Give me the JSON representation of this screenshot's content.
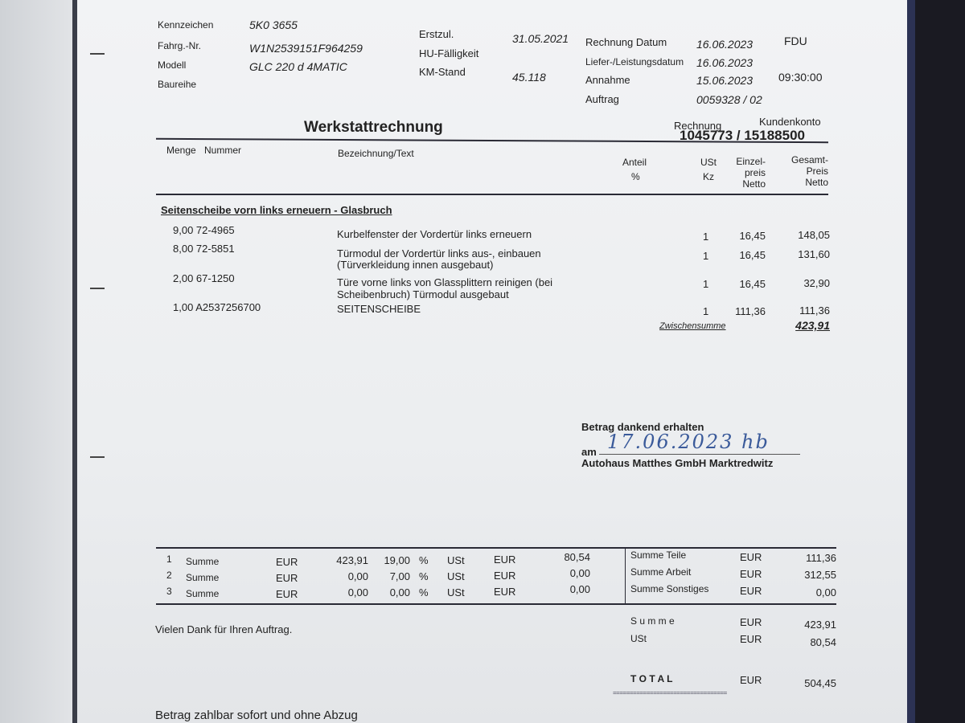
{
  "vehicle": {
    "kennzeichen_label": "Kennzeichen",
    "kennzeichen": "5K0 3655",
    "fahrg_label": "Fahrg.-Nr.",
    "fahrg": "W1N2539151F964259",
    "modell_label": "Modell",
    "modell": "GLC 220 d 4MATIC",
    "baureihe_label": "Baureihe",
    "erstzul_label": "Erstzul.",
    "erstzul": "31.05.2021",
    "hu_label": "HU-Fälligkeit",
    "km_label": "KM-Stand",
    "km": "45.118"
  },
  "invoice_meta": {
    "rechnung_datum_label": "Rechnung Datum",
    "rechnung_datum": "16.06.2023",
    "code": "FDU",
    "liefer_label": "Liefer-/Leistungsdatum",
    "liefer": "16.06.2023",
    "annahme_label": "Annahme",
    "annahme": "15.06.2023",
    "annahme_time": "09:30:00",
    "auftrag_label": "Auftrag",
    "auftrag": "0059328 / 02"
  },
  "title": "Werkstattrechnung",
  "rechnung_label": "Rechnung",
  "kundenkonto_label": "Kundenkonto",
  "numbers": "1045773 /  15188500",
  "columns": {
    "menge": "Menge",
    "nummer": "Nummer",
    "bezeichnung": "Bezeichnung/Text",
    "anteil": "Anteil",
    "anteil2": "%",
    "ust": "USt",
    "ust2": "Kz",
    "einzel": "Einzel-",
    "einzel2": "preis",
    "einzel3": "Netto",
    "gesamt": "Gesamt-",
    "gesamt2": "Preis",
    "gesamt3": "Netto"
  },
  "section_heading": "Seitenscheibe vorn links erneuern - Glasbruch",
  "items": [
    {
      "menge_nummer": "9,00 72-4965",
      "text": "Kurbelfenster der Vordertür links erneuern",
      "text2": "",
      "kz": "1",
      "einzel": "16,45",
      "gesamt": "148,05"
    },
    {
      "menge_nummer": "8,00 72-5851",
      "text": "Türmodul der Vordertür links aus-, einbauen",
      "text2": "(Türverkleidung innen ausgebaut)",
      "kz": "1",
      "einzel": "16,45",
      "gesamt": "131,60"
    },
    {
      "menge_nummer": "2,00 67-1250",
      "text": "Türe vorne links von Glassplittern reinigen (bei",
      "text2": "Scheibenbruch) Türmodul ausgebaut",
      "kz": "1",
      "einzel": "16,45",
      "gesamt": "32,90"
    },
    {
      "menge_nummer": "1,00 A2537256700",
      "text": "SEITENSCHEIBE",
      "text2": "",
      "kz": "1",
      "einzel": "111,36",
      "gesamt": "111,36"
    }
  ],
  "zwischensumme_label": "Zwischensumme",
  "zwischensumme": "423,91",
  "receipt": {
    "label": "Betrag dankend erhalten",
    "am": "am",
    "signature": "17.06.2023 hb",
    "company": "Autohaus Matthes GmbH Marktredwitz"
  },
  "tax_rows": [
    {
      "n": "1",
      "label": "Summe",
      "cur": "EUR",
      "base": "423,91",
      "rate": "19,00",
      "pct": "%",
      "ust": "USt",
      "cur2": "EUR",
      "amount": "80,54"
    },
    {
      "n": "2",
      "label": "Summe",
      "cur": "EUR",
      "base": "0,00",
      "rate": "7,00",
      "pct": "%",
      "ust": "USt",
      "cur2": "EUR",
      "amount": "0,00"
    },
    {
      "n": "3",
      "label": "Summe",
      "cur": "EUR",
      "base": "0,00",
      "rate": "0,00",
      "pct": "%",
      "ust": "USt",
      "cur2": "EUR",
      "amount": "0,00"
    }
  ],
  "sums": [
    {
      "label": "Summe Teile",
      "cur": "EUR",
      "value": "111,36"
    },
    {
      "label": "Summe Arbeit",
      "cur": "EUR",
      "value": "312,55"
    },
    {
      "label": "Summe Sonstiges",
      "cur": "EUR",
      "value": "0,00"
    }
  ],
  "totals": {
    "summe_label": "S u m m e",
    "summe_cur": "EUR",
    "summe": "423,91",
    "ust_label": "USt",
    "ust_cur": "EUR",
    "ust": "80,54",
    "total_label": "T O T A L",
    "total_cur": "EUR",
    "total": "504,45",
    "underline": "=================================="
  },
  "thanks": "Vielen Dank für Ihren Auftrag.",
  "payment": "Betrag zahlbar sofort und ohne Abzug"
}
